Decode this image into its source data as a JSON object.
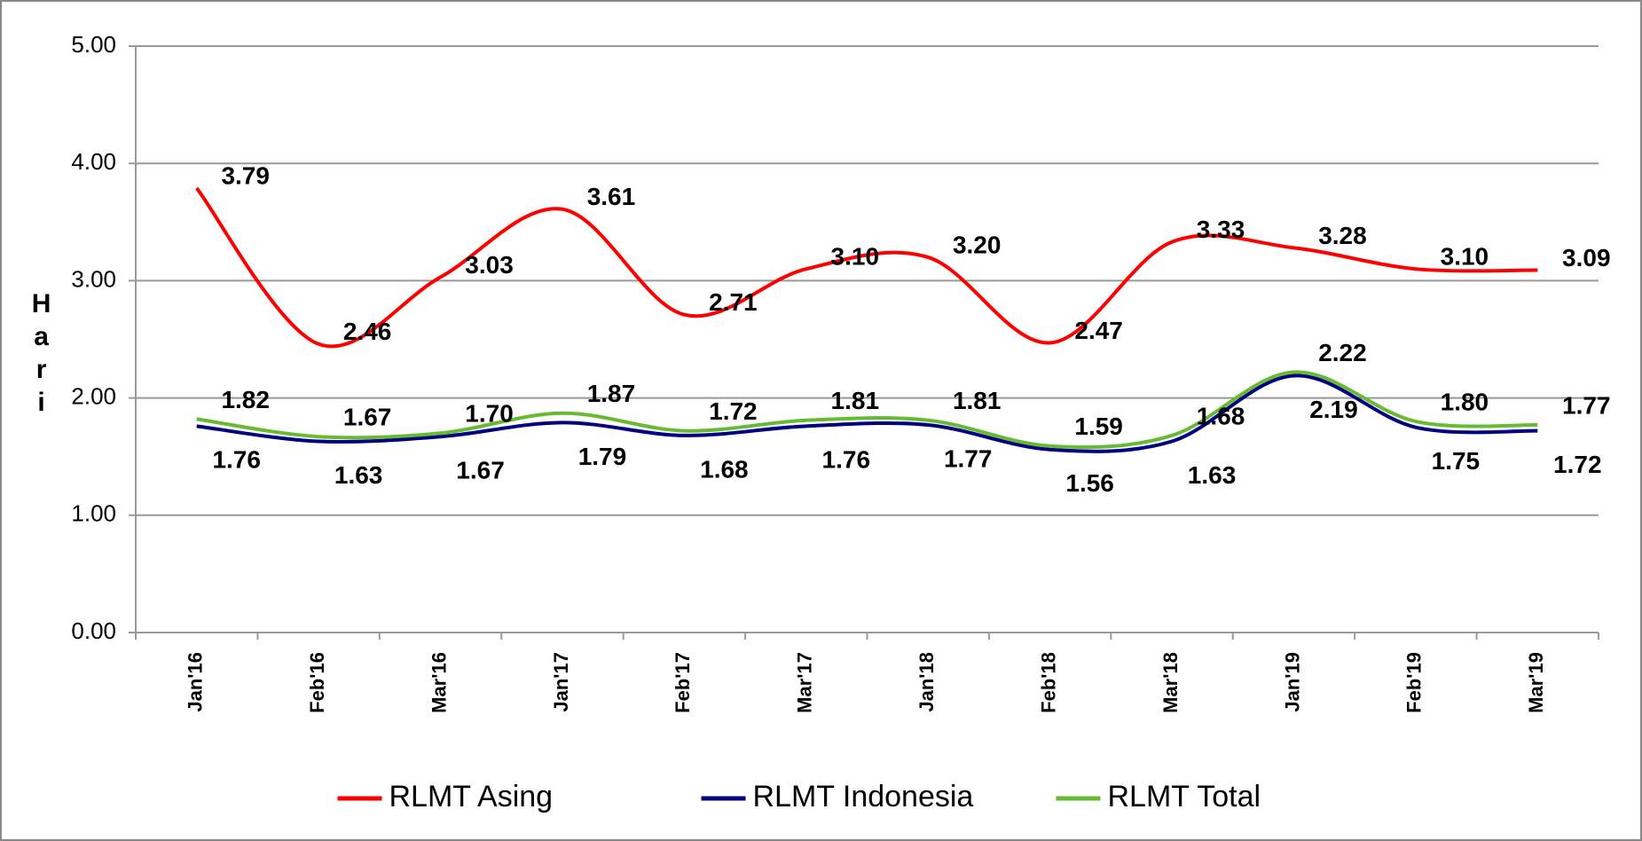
{
  "chart_data": {
    "type": "line",
    "y_label": "Hari",
    "categories": [
      "Jan'16",
      "Feb'16",
      "Mar'16",
      "Jan'17",
      "Feb'17",
      "Mar'17",
      "Jan'18",
      "Feb'18",
      "Mar'18",
      "Jan'19",
      "Feb'19",
      "Mar'19"
    ],
    "series": [
      {
        "name": "RLMT Asing",
        "color": "#ff0000",
        "label_color": "#c00000",
        "values": [
          3.79,
          2.46,
          3.03,
          3.61,
          2.71,
          3.1,
          3.2,
          2.47,
          3.33,
          3.28,
          3.1,
          3.09
        ],
        "value_labels": [
          "3.79",
          "2.46",
          "3.03",
          "3.61",
          "2.71",
          "3.10",
          "3.20",
          "2.47",
          "3.33",
          "3.28",
          "3.10",
          "3.09"
        ]
      },
      {
        "name": "RLMT Indonesia",
        "color": "#000080",
        "label_color": "#1f1f9f",
        "values": [
          1.76,
          1.63,
          1.67,
          1.79,
          1.68,
          1.76,
          1.77,
          1.56,
          1.63,
          2.19,
          1.75,
          1.72
        ],
        "value_labels": [
          "1.76",
          "1.63",
          "1.67",
          "1.79",
          "1.68",
          "1.76",
          "1.77",
          "1.56",
          "1.63",
          "2.19",
          "1.75",
          "1.72"
        ]
      },
      {
        "name": "RLMT Total",
        "color": "#66bb33",
        "label_color": "#66bb33",
        "values": [
          1.82,
          1.67,
          1.7,
          1.87,
          1.72,
          1.81,
          1.81,
          1.59,
          1.68,
          2.22,
          1.8,
          1.77
        ],
        "value_labels": [
          "1.82",
          "1.67",
          "1.70",
          "1.87",
          "1.72",
          "1.81",
          "1.81",
          "1.59",
          "1.68",
          "2.22",
          "1.80",
          "1.77"
        ]
      }
    ],
    "ylim": [
      0,
      5
    ],
    "yticks": [
      {
        "value": 0,
        "label": "0.00"
      },
      {
        "value": 1,
        "label": "1.00"
      },
      {
        "value": 2,
        "label": "2.00"
      },
      {
        "value": 3,
        "label": "3.00"
      },
      {
        "value": 4,
        "label": "4.00"
      },
      {
        "value": 5,
        "label": "5.00"
      }
    ],
    "grid": true,
    "smooth": true,
    "legend": "bottom"
  }
}
